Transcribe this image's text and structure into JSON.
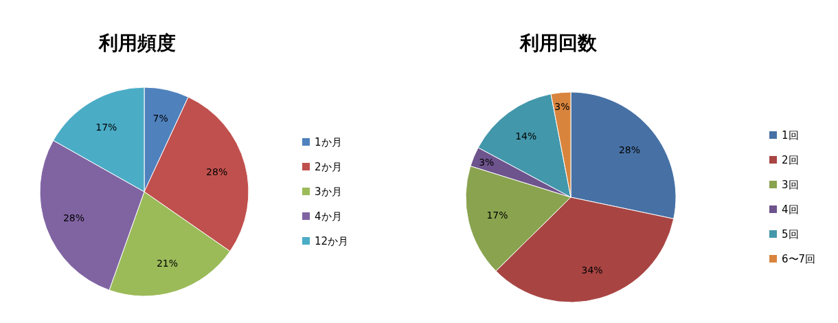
{
  "chart_data": [
    {
      "type": "pie",
      "title": "利用頻度",
      "categories": [
        "1か月",
        "2か月",
        "3か月",
        "4か月",
        "12か月"
      ],
      "values": [
        7,
        28,
        21,
        28,
        17
      ],
      "value_labels": [
        "7%",
        "28%",
        "21%",
        "28%",
        "17%"
      ],
      "colors": [
        "#4f81bd",
        "#c0504d",
        "#9bbb59",
        "#8064a2",
        "#4bacc6"
      ],
      "legend": "right"
    },
    {
      "type": "pie",
      "title": "利用回数",
      "categories": [
        "1回",
        "2回",
        "3回",
        "4回",
        "5回",
        "6〜7回"
      ],
      "values": [
        28,
        34,
        17,
        3,
        14,
        3
      ],
      "value_labels": [
        "28%",
        "34%",
        "17%",
        "3%",
        "14%",
        "3%"
      ],
      "colors": [
        "#4771a5",
        "#a84543",
        "#89a34f",
        "#6e548d",
        "#4397ab",
        "#d9843d"
      ],
      "legend": "right"
    }
  ]
}
